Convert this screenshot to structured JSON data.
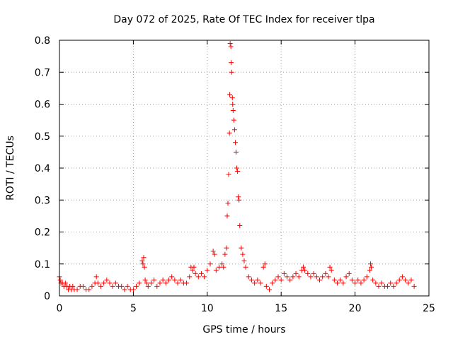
{
  "chart_data": {
    "type": "scatter",
    "title": "Day 072 of 2025, Rate Of TEC Index for receiver tlpa",
    "xlabel": "GPS time / hours",
    "ylabel": "ROTI / TECUs",
    "xlim": [
      0,
      25
    ],
    "ylim": [
      0,
      0.8
    ],
    "xticks": [
      "0",
      "5",
      "10",
      "15",
      "20",
      "25"
    ],
    "xtick_values": [
      0,
      5,
      10,
      15,
      20,
      25
    ],
    "yticks": [
      "0",
      "0.1",
      "0.2",
      "0.3",
      "0.4",
      "0.5",
      "0.6",
      "0.7",
      "0.8"
    ],
    "ytick_values": [
      0,
      0.1,
      0.2,
      0.3,
      0.4,
      0.5,
      0.6,
      0.7,
      0.8
    ],
    "grid": true,
    "marker": "plus",
    "color": "#ff0000",
    "series": [
      {
        "x": [
          0.0,
          0.05,
          0.1,
          0.2,
          0.3,
          0.4,
          0.5,
          0.6,
          0.7,
          0.8,
          0.9,
          1.0,
          1.2,
          1.4,
          1.6,
          1.8,
          2.0,
          2.2,
          2.4,
          2.5,
          2.6,
          2.8,
          3.0,
          3.2,
          3.4,
          3.6,
          3.8,
          4.0,
          4.2,
          4.4,
          4.6,
          4.8,
          5.0,
          5.2,
          5.4,
          5.6,
          5.65,
          5.7,
          5.75,
          5.8,
          5.9,
          6.0,
          6.2,
          6.4,
          6.6,
          6.8,
          7.0,
          7.2,
          7.4,
          7.6,
          7.8,
          8.0,
          8.2,
          8.4,
          8.6,
          8.8,
          8.9,
          9.0,
          9.1,
          9.2,
          9.4,
          9.6,
          9.8,
          10.0,
          10.2,
          10.4,
          10.5,
          10.6,
          10.8,
          11.0,
          11.1,
          11.2,
          11.3,
          11.35,
          11.4,
          11.45,
          11.5,
          11.52,
          11.55,
          11.6,
          11.62,
          11.65,
          11.7,
          11.72,
          11.75,
          11.8,
          11.85,
          11.9,
          11.95,
          12.0,
          12.05,
          12.1,
          12.15,
          12.2,
          12.3,
          12.4,
          12.5,
          12.6,
          12.8,
          13.0,
          13.2,
          13.4,
          13.6,
          13.8,
          13.9,
          14.0,
          14.2,
          14.4,
          14.6,
          14.8,
          15.0,
          15.2,
          15.4,
          15.6,
          15.8,
          16.0,
          16.2,
          16.4,
          16.5,
          16.6,
          16.8,
          17.0,
          17.2,
          17.4,
          17.6,
          17.8,
          18.0,
          18.2,
          18.3,
          18.4,
          18.6,
          18.8,
          19.0,
          19.2,
          19.4,
          19.6,
          19.8,
          20.0,
          20.2,
          20.4,
          20.6,
          20.8,
          21.0,
          21.05,
          21.1,
          21.2,
          21.4,
          21.6,
          21.8,
          22.0,
          22.2,
          22.4,
          22.6,
          22.8,
          23.0,
          23.2,
          23.4,
          23.6,
          23.8,
          24.0
        ],
        "y": [
          0.06,
          0.05,
          0.04,
          0.04,
          0.03,
          0.04,
          0.03,
          0.02,
          0.03,
          0.02,
          0.03,
          0.02,
          0.02,
          0.03,
          0.03,
          0.02,
          0.02,
          0.03,
          0.04,
          0.06,
          0.04,
          0.03,
          0.04,
          0.05,
          0.04,
          0.03,
          0.04,
          0.03,
          0.03,
          0.02,
          0.03,
          0.02,
          0.02,
          0.03,
          0.04,
          0.11,
          0.1,
          0.12,
          0.09,
          0.05,
          0.04,
          0.03,
          0.04,
          0.05,
          0.03,
          0.04,
          0.05,
          0.04,
          0.05,
          0.06,
          0.05,
          0.04,
          0.05,
          0.04,
          0.04,
          0.06,
          0.09,
          0.08,
          0.09,
          0.07,
          0.06,
          0.07,
          0.06,
          0.08,
          0.1,
          0.14,
          0.13,
          0.08,
          0.09,
          0.1,
          0.09,
          0.13,
          0.15,
          0.25,
          0.29,
          0.38,
          0.51,
          0.63,
          0.79,
          0.78,
          0.73,
          0.7,
          0.62,
          0.6,
          0.58,
          0.55,
          0.52,
          0.48,
          0.45,
          0.4,
          0.39,
          0.31,
          0.3,
          0.22,
          0.15,
          0.13,
          0.11,
          0.09,
          0.06,
          0.05,
          0.04,
          0.05,
          0.04,
          0.09,
          0.1,
          0.03,
          0.02,
          0.04,
          0.05,
          0.06,
          0.05,
          0.07,
          0.06,
          0.05,
          0.06,
          0.07,
          0.06,
          0.08,
          0.09,
          0.08,
          0.07,
          0.06,
          0.07,
          0.06,
          0.05,
          0.06,
          0.07,
          0.06,
          0.09,
          0.08,
          0.05,
          0.04,
          0.05,
          0.04,
          0.06,
          0.07,
          0.05,
          0.04,
          0.05,
          0.04,
          0.05,
          0.06,
          0.08,
          0.1,
          0.09,
          0.05,
          0.04,
          0.03,
          0.04,
          0.03,
          0.03,
          0.04,
          0.03,
          0.04,
          0.05,
          0.06,
          0.05,
          0.04,
          0.05,
          0.03
        ]
      }
    ]
  }
}
